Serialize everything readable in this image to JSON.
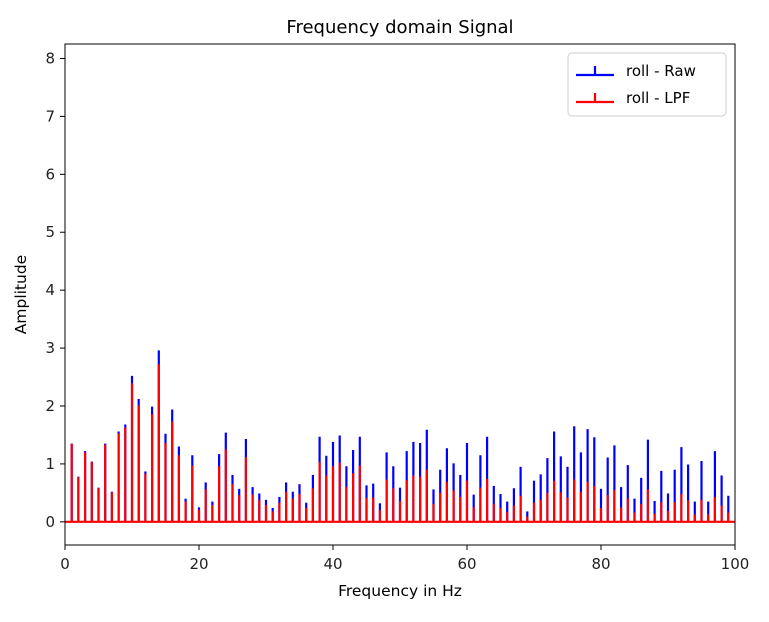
{
  "chart_data": {
    "type": "stem",
    "title": "Frequency domain Signal",
    "xlabel": "Frequency in Hz",
    "ylabel": "Amplitude",
    "xlim": [
      0,
      100
    ],
    "ylim": [
      -0.4,
      8.25
    ],
    "xticks": [
      0,
      20,
      40,
      60,
      80,
      100
    ],
    "yticks": [
      0,
      1,
      2,
      3,
      4,
      5,
      6,
      7,
      8
    ],
    "grid": false,
    "legend_position": "top-right",
    "x": [
      1,
      2,
      3,
      4,
      5,
      6,
      7,
      8,
      9,
      10,
      11,
      12,
      13,
      14,
      15,
      16,
      17,
      18,
      19,
      20,
      21,
      22,
      23,
      24,
      25,
      26,
      27,
      28,
      29,
      30,
      31,
      32,
      33,
      34,
      35,
      36,
      37,
      38,
      39,
      40,
      41,
      42,
      43,
      44,
      45,
      46,
      47,
      48,
      49,
      50,
      51,
      52,
      53,
      54,
      55,
      56,
      57,
      58,
      59,
      60,
      61,
      62,
      63,
      64,
      65,
      66,
      67,
      68,
      69,
      70,
      71,
      72,
      73,
      74,
      75,
      76,
      77,
      78,
      79,
      80,
      81,
      82,
      83,
      84,
      85,
      86,
      87,
      88,
      89,
      90,
      91,
      92,
      93,
      94,
      95,
      96,
      97,
      98,
      99,
      100
    ],
    "series": [
      {
        "name": "roll - Raw",
        "color": "#0000ff",
        "values": [
          1.35,
          0.78,
          1.22,
          1.04,
          0.59,
          1.35,
          0.52,
          1.56,
          1.68,
          2.52,
          2.12,
          0.87,
          1.99,
          2.96,
          1.52,
          1.94,
          1.3,
          0.4,
          1.15,
          0.25,
          0.68,
          0.35,
          1.17,
          1.54,
          0.81,
          0.57,
          1.43,
          0.6,
          0.49,
          0.38,
          0.24,
          0.43,
          0.68,
          0.52,
          0.65,
          0.33,
          0.81,
          1.47,
          1.14,
          1.38,
          1.49,
          0.96,
          1.24,
          1.47,
          0.63,
          0.66,
          0.32,
          1.2,
          0.96,
          0.59,
          1.22,
          1.38,
          1.36,
          1.59,
          0.56,
          0.9,
          1.27,
          1.01,
          0.81,
          1.36,
          0.47,
          1.15,
          1.47,
          0.62,
          0.48,
          0.35,
          0.58,
          0.95,
          0.18,
          0.71,
          0.82,
          1.1,
          1.56,
          1.13,
          0.95,
          1.65,
          1.2,
          1.6,
          1.46,
          0.57,
          1.11,
          1.32,
          0.6,
          0.98,
          0.4,
          0.76,
          1.42,
          0.36,
          0.88,
          0.49,
          0.9,
          1.29,
          0.99,
          0.35,
          1.05,
          0.35,
          1.22,
          0.8,
          0.45,
          0.0
        ]
      },
      {
        "name": "roll - LPF",
        "color": "#ff0000",
        "values": [
          1.35,
          0.77,
          1.2,
          1.03,
          0.58,
          1.33,
          0.51,
          1.53,
          1.63,
          2.39,
          2.01,
          0.83,
          1.86,
          2.72,
          1.36,
          1.73,
          1.15,
          0.35,
          0.97,
          0.21,
          0.56,
          0.29,
          0.96,
          1.25,
          0.65,
          0.46,
          1.12,
          0.47,
          0.38,
          0.29,
          0.18,
          0.33,
          0.52,
          0.4,
          0.48,
          0.24,
          0.58,
          1.03,
          0.8,
          0.96,
          1.02,
          0.6,
          0.84,
          0.97,
          0.41,
          0.42,
          0.2,
          0.73,
          0.58,
          0.36,
          0.72,
          0.8,
          0.78,
          0.9,
          0.31,
          0.5,
          0.69,
          0.54,
          0.43,
          0.71,
          0.25,
          0.59,
          0.74,
          0.31,
          0.24,
          0.17,
          0.28,
          0.45,
          0.09,
          0.33,
          0.38,
          0.5,
          0.71,
          0.51,
          0.42,
          0.73,
          0.52,
          0.69,
          0.62,
          0.24,
          0.46,
          0.55,
          0.25,
          0.4,
          0.16,
          0.31,
          0.56,
          0.14,
          0.34,
          0.19,
          0.34,
          0.48,
          0.37,
          0.13,
          0.38,
          0.13,
          0.43,
          0.28,
          0.16,
          0.0
        ]
      }
    ]
  }
}
